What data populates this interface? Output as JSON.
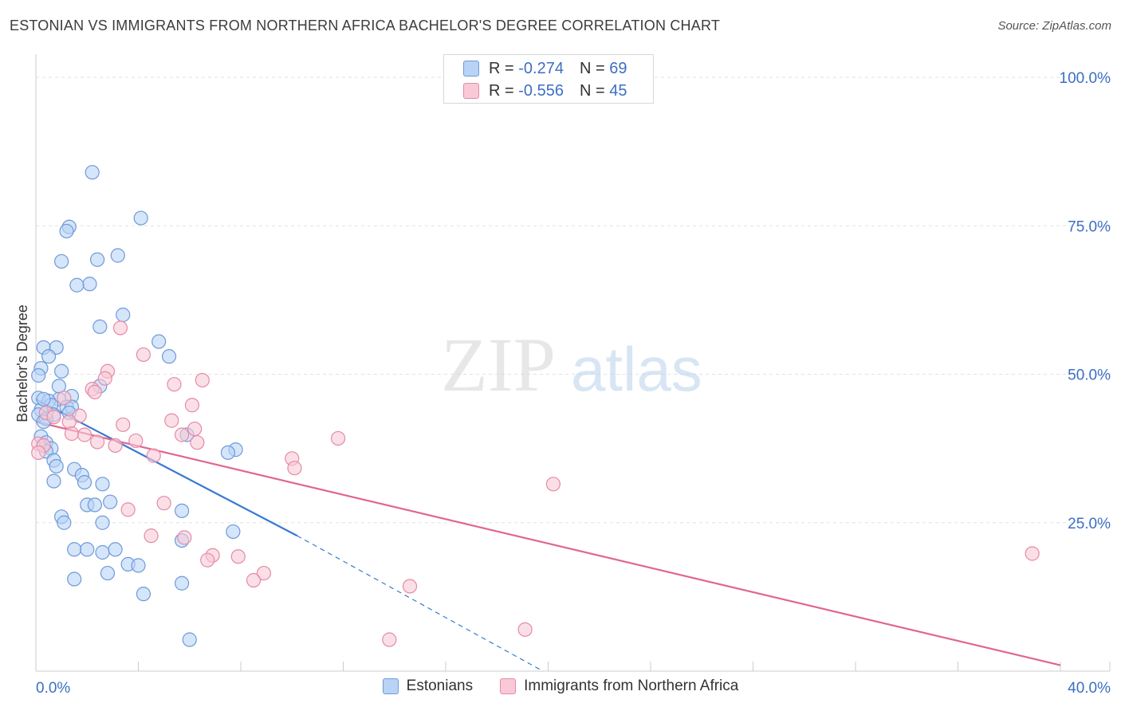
{
  "title": "ESTONIAN VS IMMIGRANTS FROM NORTHERN AFRICA BACHELOR'S DEGREE CORRELATION CHART",
  "source": "Source: ZipAtlas.com",
  "watermark": {
    "zip": "ZIP",
    "atlas": "atlas"
  },
  "stats_box": [
    {
      "r_label": "R =",
      "r_value": "-0.274",
      "n_label": "N =",
      "n_value": "69",
      "color": "#b9d3f6"
    },
    {
      "r_label": "R =",
      "r_value": "-0.556",
      "n_label": "N =",
      "n_value": "45",
      "color": "#f9c9d7"
    }
  ],
  "chart_data": {
    "type": "scatter",
    "ylabel": "Bachelor's Degree",
    "xlim": [
      0,
      40
    ],
    "ylim": [
      0,
      100
    ],
    "x_tick_labels": [
      "0.0%",
      "40.0%"
    ],
    "y_ticks": [
      25,
      50,
      75,
      100
    ],
    "y_tick_labels": [
      "25.0%",
      "50.0%",
      "75.0%",
      "100.0%"
    ],
    "grid": true,
    "legend_position": "bottom",
    "colors": {
      "blue_fill": "#b9d3f6",
      "blue_stroke": "#6f9ad8",
      "blue_line": "#3a78d0",
      "pink_fill": "#f9c9d7",
      "pink_stroke": "#e58aa7",
      "pink_line": "#e0668f",
      "tick_label": "#3d6fc4"
    },
    "series": [
      {
        "name": "Estonians",
        "points": [
          [
            2.2,
            84
          ],
          [
            4.1,
            76.3
          ],
          [
            1.3,
            74.8
          ],
          [
            1.2,
            74.1
          ],
          [
            3.2,
            70
          ],
          [
            2.4,
            69.3
          ],
          [
            1.0,
            69
          ],
          [
            2.1,
            65.2
          ],
          [
            1.6,
            65
          ],
          [
            3.4,
            60
          ],
          [
            2.5,
            58
          ],
          [
            4.8,
            55.5
          ],
          [
            0.3,
            54.5
          ],
          [
            0.8,
            54.5
          ],
          [
            0.5,
            53
          ],
          [
            5.2,
            53
          ],
          [
            0.2,
            51
          ],
          [
            0.1,
            49.8
          ],
          [
            1.0,
            50.5
          ],
          [
            0.9,
            48
          ],
          [
            2.5,
            48
          ],
          [
            0.1,
            46
          ],
          [
            1.4,
            46.3
          ],
          [
            0.9,
            45.8
          ],
          [
            0.5,
            45.5
          ],
          [
            0.6,
            44.8
          ],
          [
            1.2,
            44.5
          ],
          [
            0.2,
            44
          ],
          [
            1.4,
            44.5
          ],
          [
            0.1,
            43.2
          ],
          [
            0.7,
            43.2
          ],
          [
            0.4,
            42.5
          ],
          [
            0.3,
            42
          ],
          [
            0.2,
            39.5
          ],
          [
            0.4,
            38.5
          ],
          [
            0.6,
            37.5
          ],
          [
            0.4,
            37
          ],
          [
            5.9,
            39.8
          ],
          [
            7.8,
            37.3
          ],
          [
            7.5,
            36.8
          ],
          [
            0.7,
            35.5
          ],
          [
            0.8,
            34.5
          ],
          [
            1.5,
            34
          ],
          [
            1.8,
            33
          ],
          [
            0.7,
            32
          ],
          [
            1.9,
            31.8
          ],
          [
            2.6,
            31.5
          ],
          [
            2.0,
            28
          ],
          [
            2.3,
            28
          ],
          [
            2.9,
            28.5
          ],
          [
            5.7,
            27
          ],
          [
            1.0,
            26
          ],
          [
            1.1,
            25
          ],
          [
            2.6,
            25
          ],
          [
            7.7,
            23.5
          ],
          [
            5.7,
            22
          ],
          [
            1.5,
            20.5
          ],
          [
            2.0,
            20.5
          ],
          [
            2.6,
            20
          ],
          [
            3.1,
            20.5
          ],
          [
            3.6,
            18
          ],
          [
            4.0,
            17.8
          ],
          [
            2.8,
            16.5
          ],
          [
            1.5,
            15.5
          ],
          [
            4.2,
            13
          ],
          [
            5.7,
            14.8
          ],
          [
            6.0,
            5.3
          ],
          [
            0.3,
            45.8
          ],
          [
            1.3,
            43.5
          ]
        ]
      },
      {
        "name": "Immigrants from Northern Africa",
        "points": [
          [
            3.3,
            57.8
          ],
          [
            4.2,
            53.3
          ],
          [
            2.8,
            50.5
          ],
          [
            2.7,
            49.3
          ],
          [
            6.5,
            49
          ],
          [
            5.4,
            48.3
          ],
          [
            2.2,
            47.5
          ],
          [
            2.3,
            47
          ],
          [
            1.1,
            46
          ],
          [
            6.1,
            44.8
          ],
          [
            0.4,
            43.5
          ],
          [
            1.7,
            43
          ],
          [
            0.7,
            42.8
          ],
          [
            1.3,
            42
          ],
          [
            5.3,
            42.2
          ],
          [
            3.4,
            41.5
          ],
          [
            6.2,
            40.8
          ],
          [
            1.4,
            40
          ],
          [
            5.7,
            39.8
          ],
          [
            1.9,
            39.8
          ],
          [
            11.8,
            39.2
          ],
          [
            3.9,
            38.8
          ],
          [
            2.4,
            38.6
          ],
          [
            6.3,
            38.5
          ],
          [
            0.1,
            38.3
          ],
          [
            0.3,
            38
          ],
          [
            3.1,
            38
          ],
          [
            0.1,
            36.8
          ],
          [
            4.6,
            36.3
          ],
          [
            10.0,
            35.8
          ],
          [
            10.1,
            34.2
          ],
          [
            20.2,
            31.5
          ],
          [
            3.6,
            27.2
          ],
          [
            5.0,
            28.3
          ],
          [
            5.8,
            22.5
          ],
          [
            4.5,
            22.8
          ],
          [
            6.9,
            19.5
          ],
          [
            7.9,
            19.3
          ],
          [
            6.7,
            18.7
          ],
          [
            8.9,
            16.5
          ],
          [
            8.5,
            15.3
          ],
          [
            14.6,
            14.3
          ],
          [
            38.9,
            19.8
          ],
          [
            13.8,
            5.3
          ],
          [
            19.1,
            7
          ]
        ]
      }
    ],
    "trendlines": [
      {
        "series": "Estonians",
        "x": [
          0,
          10.2
        ],
        "y": [
          45.8,
          22.8
        ],
        "dashed_extension_to": [
          19.8,
          0
        ]
      },
      {
        "series": "Immigrants from Northern Africa",
        "x": [
          0,
          40
        ],
        "y": [
          42,
          1
        ]
      }
    ]
  }
}
